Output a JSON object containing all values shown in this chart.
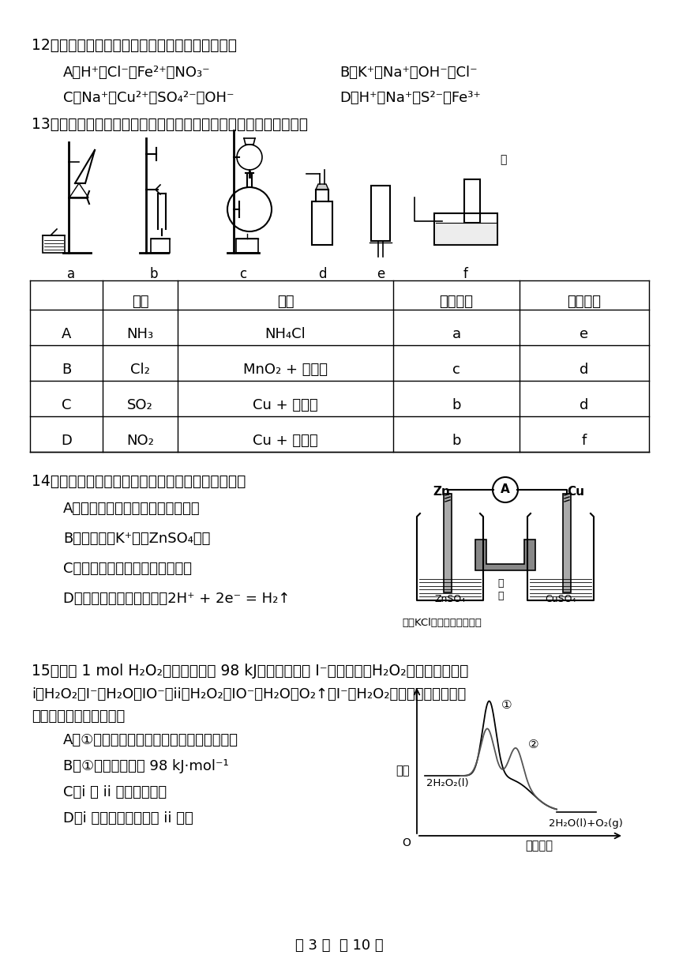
{
  "bg_color": "#ffffff",
  "title_q12": "12．下列各组离子中，在水溶液中能大量共存的是",
  "q12_A": "A．H⁺、Cl⁻、Fe²⁺、NO₃⁻",
  "q12_B": "B．K⁺、Na⁺、OH⁻、Cl⁻",
  "q12_C": "C．Na⁺、Cu²⁺、SO₄²⁻、OH⁻",
  "q12_D": "D．H⁺、Na⁺、S²⁻、Fe³⁺",
  "title_q13": "13．实验室制备下列气体所选试剂、制备装置及收集方法均正确的是",
  "app_labels": [
    "a",
    "b",
    "c",
    "d",
    "e",
    "f"
  ],
  "table_headers": [
    "",
    "气体",
    "试剂",
    "制备装置",
    "收集方法"
  ],
  "table_rows": [
    [
      "A",
      "NH₃",
      "NH₄Cl",
      "a",
      "e"
    ],
    [
      "B",
      "Cl₂",
      "MnO₂ + 浓盐酸",
      "c",
      "d"
    ],
    [
      "C",
      "SO₂",
      "Cu + 浓硫酸",
      "b",
      "d"
    ],
    [
      "D",
      "NO₂",
      "Cu + 浓硝酸",
      "b",
      "f"
    ]
  ],
  "title_q14": "14．锌铜原电池装置如右图所示，下列说法正确的是",
  "q14_A": "A．锌既是电极材料，也是离子导体",
  "q14_B": "B．盐桥中的K⁺移向ZnSO₄溶液",
  "q14_C": "C．电子从锌片经电流表流向铜片",
  "q14_D": "D．正极上的电极反应为：2H⁺ + 2e⁻ = H₂↑",
  "batt_caption": "（含KCl饱和溶液的琼胶）",
  "title_q15_1": "15．已知 1 mol H₂O₂分解放出热量 98 kJ。在含有少量 I⁻的溶液中，H₂O₂分解的机理是：",
  "title_q15_2": "i．H₂O₂＋I⁻＝H₂O＋IO⁻，ii．H₂O₂＋IO⁻＝H₂O＋O₂↑＋I⁻。H₂O₂分解过程中能量变化",
  "title_q15_3": "如图。下列说法正确的是",
  "q15_A": "A．①表示加催化剂后反应过程中的能量变化",
  "q15_B": "B．①的活化能等于 98 kJ·mol⁻¹",
  "q15_C": "C．i 和 ii 均为放热反应",
  "q15_D": "D．i 的化学反应速率比 ii 的小",
  "eg_ylabel": "能量",
  "eg_xlabel": "反应过程",
  "eg_react": "2H₂O₂(l)",
  "eg_prod": "2H₂O(l)+O₂(g)",
  "eg_c1": "①",
  "eg_c2": "②",
  "footer": "第 3 页  共 10 页"
}
